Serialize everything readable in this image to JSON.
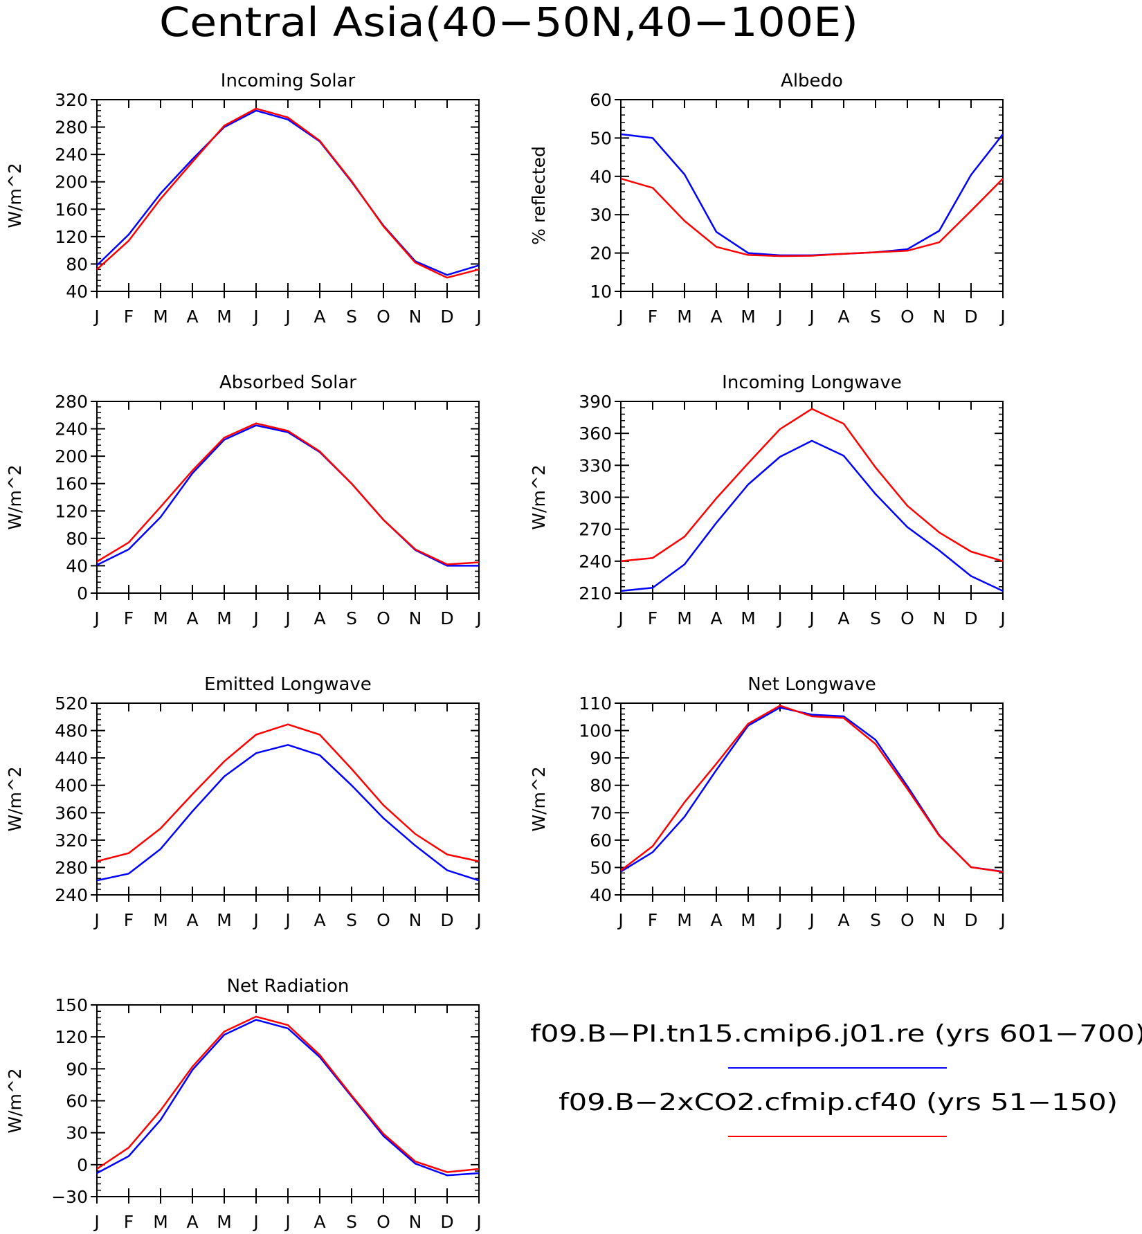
{
  "figure": {
    "title": "Central Asia(40−50N,40−100E)",
    "months": [
      "J",
      "F",
      "M",
      "A",
      "M",
      "J",
      "J",
      "A",
      "S",
      "O",
      "N",
      "D",
      "J"
    ],
    "colors": {
      "control": "#0000ff",
      "co2x2": "#ff0000"
    },
    "legend": {
      "entries": [
        {
          "label": "f09.B−PI.tn15.cmip6.j01.re (yrs 601−700)",
          "color": "#0000ff"
        },
        {
          "label": "f09.B−2xCO2.cfmip.cf40 (yrs 51−150)",
          "color": "#ff0000"
        }
      ]
    }
  },
  "chart_data": [
    {
      "type": "line",
      "title": "Incoming Solar",
      "xlabel": "",
      "ylabel": "W/m^2",
      "categories": [
        "J",
        "F",
        "M",
        "A",
        "M",
        "J",
        "J",
        "A",
        "S",
        "O",
        "N",
        "D",
        "J"
      ],
      "ylim": [
        40,
        320
      ],
      "yticks": [
        40,
        80,
        120,
        160,
        200,
        240,
        280,
        320
      ],
      "series": [
        {
          "values": [
            78,
            123,
            183,
            233,
            280,
            304,
            291,
            259,
            200,
            136,
            84,
            64,
            78
          ]
        },
        {
          "values": [
            72,
            114,
            175,
            229,
            282,
            307,
            294,
            260,
            201,
            135,
            82,
            60,
            72
          ]
        }
      ]
    },
    {
      "type": "line",
      "title": "Albedo",
      "xlabel": "",
      "ylabel": "% reflected",
      "categories": [
        "J",
        "F",
        "M",
        "A",
        "M",
        "J",
        "J",
        "A",
        "S",
        "O",
        "N",
        "D",
        "J"
      ],
      "ylim": [
        10,
        60
      ],
      "yticks": [
        10,
        20,
        30,
        40,
        50,
        60
      ],
      "series": [
        {
          "values": [
            51,
            50,
            40.5,
            25.5,
            20,
            19.4,
            19.4,
            19.8,
            20.2,
            21,
            25.8,
            40.4,
            51
          ]
        },
        {
          "values": [
            39.4,
            37,
            28.4,
            21.6,
            19.5,
            19.2,
            19.3,
            19.8,
            20.2,
            20.6,
            22.8,
            31,
            39.4
          ]
        }
      ]
    },
    {
      "type": "line",
      "title": "Absorbed Solar",
      "xlabel": "",
      "ylabel": "W/m^2",
      "categories": [
        "J",
        "F",
        "M",
        "A",
        "M",
        "J",
        "J",
        "A",
        "S",
        "O",
        "N",
        "D",
        "J"
      ],
      "ylim": [
        0,
        280
      ],
      "yticks": [
        0,
        40,
        80,
        120,
        160,
        200,
        240,
        280
      ],
      "series": [
        {
          "values": [
            41,
            64,
            111,
            175,
            224,
            245,
            235,
            206,
            160,
            107,
            63,
            40,
            40
          ]
        },
        {
          "values": [
            46,
            74,
            126,
            179,
            227,
            248,
            237,
            207,
            160,
            107,
            64,
            42,
            45
          ]
        }
      ]
    },
    {
      "type": "line",
      "title": "Incoming Longwave",
      "xlabel": "",
      "ylabel": "W/m^2",
      "categories": [
        "J",
        "F",
        "M",
        "A",
        "M",
        "J",
        "J",
        "A",
        "S",
        "O",
        "N",
        "D",
        "J"
      ],
      "ylim": [
        210,
        390
      ],
      "yticks": [
        210,
        240,
        270,
        300,
        330,
        360,
        390
      ],
      "series": [
        {
          "values": [
            212,
            215,
            237,
            276,
            312,
            338,
            353,
            339,
            303,
            272,
            250,
            226,
            212
          ]
        },
        {
          "values": [
            240,
            243,
            263,
            299,
            332,
            364,
            383,
            369,
            328,
            292,
            267,
            249,
            240
          ]
        }
      ]
    },
    {
      "type": "line",
      "title": "Emitted Longwave",
      "xlabel": "",
      "ylabel": "W/m^2",
      "categories": [
        "J",
        "F",
        "M",
        "A",
        "M",
        "J",
        "J",
        "A",
        "S",
        "O",
        "N",
        "D",
        "J"
      ],
      "ylim": [
        240,
        520
      ],
      "yticks": [
        240,
        280,
        320,
        360,
        400,
        440,
        480,
        520
      ],
      "series": [
        {
          "values": [
            261,
            271,
            307,
            362,
            413,
            447,
            459,
            444,
            400,
            352,
            312,
            276,
            261
          ]
        },
        {
          "values": [
            289,
            301,
            337,
            387,
            435,
            474,
            489,
            474,
            424,
            371,
            329,
            299,
            289
          ]
        }
      ]
    },
    {
      "type": "line",
      "title": "Net Longwave",
      "xlabel": "",
      "ylabel": "W/m^2",
      "categories": [
        "J",
        "F",
        "M",
        "A",
        "M",
        "J",
        "J",
        "A",
        "S",
        "O",
        "N",
        "D",
        "J"
      ],
      "ylim": [
        40,
        110
      ],
      "yticks": [
        40,
        50,
        60,
        70,
        80,
        90,
        100,
        110
      ],
      "series": [
        {
          "values": [
            48.5,
            55.6,
            68.5,
            85.6,
            101.8,
            108.4,
            105.8,
            105.2,
            96.6,
            79.7,
            61.8,
            50.1,
            48.5
          ]
        },
        {
          "values": [
            48.9,
            57.8,
            73.8,
            87.9,
            102.5,
            109.1,
            105.2,
            104.6,
            95.1,
            78.7,
            61.6,
            50.1,
            48.4
          ]
        }
      ]
    },
    {
      "type": "line",
      "title": "Net Radiation",
      "xlabel": "",
      "ylabel": "W/m^2",
      "categories": [
        "J",
        "F",
        "M",
        "A",
        "M",
        "J",
        "J",
        "A",
        "S",
        "O",
        "N",
        "D",
        "J"
      ],
      "ylim": [
        -30,
        150
      ],
      "yticks": [
        -30,
        0,
        30,
        60,
        90,
        120,
        150
      ],
      "series": [
        {
          "values": [
            -8,
            8,
            42,
            89,
            122,
            136,
            128,
            101,
            64,
            27,
            1,
            -10,
            -8
          ]
        },
        {
          "values": [
            -4,
            16,
            51,
            92,
            125,
            139,
            131,
            103,
            65,
            29,
            3,
            -7,
            -4
          ]
        }
      ]
    }
  ]
}
